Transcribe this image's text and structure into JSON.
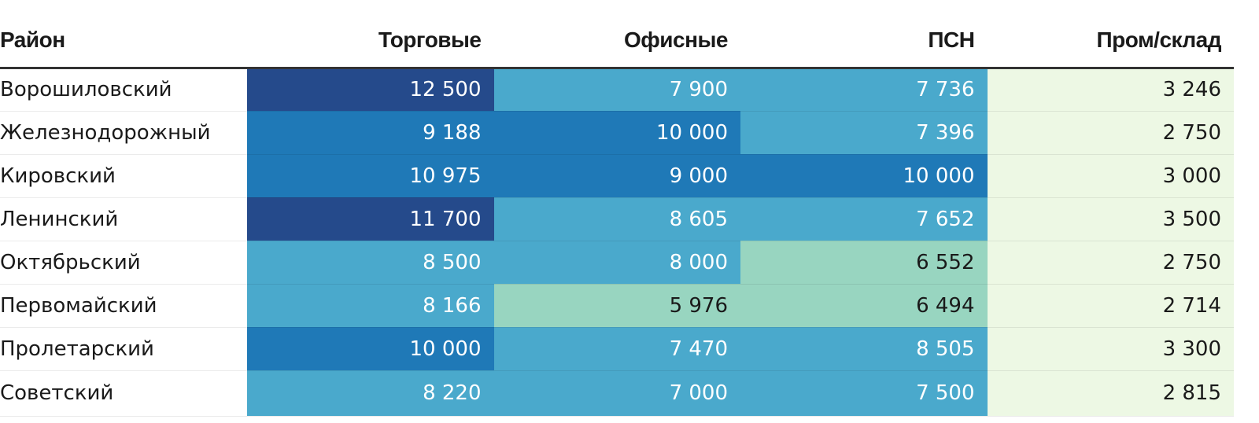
{
  "chart_data": {
    "type": "table",
    "columns": [
      "Район",
      "Торговые",
      "Офисные",
      "ПСН",
      "Пром/склад"
    ],
    "rows": [
      [
        "Ворошиловский",
        "12 500",
        "7 900",
        "7 736",
        "3 246"
      ],
      [
        "Железнодорожный",
        "9 188",
        "10 000",
        "7 396",
        "2 750"
      ],
      [
        "Кировский",
        "10 975",
        "9 000",
        "10 000",
        "3 000"
      ],
      [
        "Ленинский",
        "11 700",
        "8 605",
        "7 652",
        "3 500"
      ],
      [
        "Октябрьский",
        "8 500",
        "8 000",
        "6 552",
        "2 750"
      ],
      [
        "Первомайский",
        "8 166",
        "5 976",
        "6 494",
        "2 714"
      ],
      [
        "Пролетарский",
        "10 000",
        "7 470",
        "8 505",
        "3 300"
      ],
      [
        "Советский",
        "8 220",
        "7 000",
        "7 500",
        "2 815"
      ]
    ],
    "color_scale": {
      "bins": [
        {
          "min": 0,
          "max": 5000,
          "color": "#edf8e4",
          "text_color": "#1a1a1a"
        },
        {
          "min": 5000,
          "max": 7000,
          "color": "#98d5c0",
          "text_color": "#1a1a1a"
        },
        {
          "min": 7000,
          "max": 9000,
          "color": "#4aa9cc",
          "text_color": "#ffffff"
        },
        {
          "min": 9000,
          "max": 11000,
          "color": "#1f79b7",
          "text_color": "#ffffff"
        },
        {
          "min": 11000,
          "max": 99999,
          "color": "#254a8b",
          "text_color": "#ffffff"
        }
      ]
    }
  }
}
